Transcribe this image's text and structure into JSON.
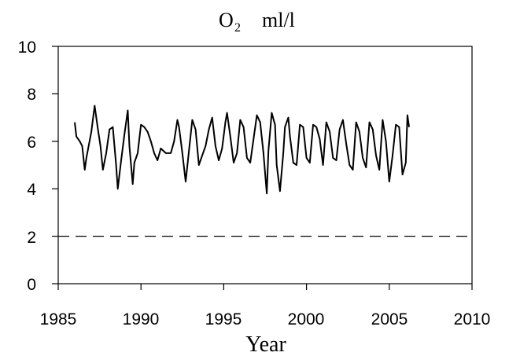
{
  "chart_data": {
    "type": "line",
    "title": {
      "prefix": "O",
      "subscript": "2",
      "unit": "ml/l"
    },
    "xlabel": "Year",
    "ylabel": "",
    "xlim": [
      1985,
      2010
    ],
    "ylim": [
      0,
      10
    ],
    "xticks": [
      "1985",
      "1990",
      "1995",
      "2000",
      "2005",
      "2010"
    ],
    "yticks": [
      "0",
      "2",
      "4",
      "6",
      "8",
      "10"
    ],
    "grid": false,
    "reference_line": {
      "y": 2,
      "style": "dashed"
    },
    "series": [
      {
        "color": "#000000",
        "x": [
          1986.0,
          1986.1,
          1986.3,
          1986.45,
          1986.6,
          1986.7,
          1987.0,
          1987.2,
          1987.4,
          1987.55,
          1987.7,
          1987.9,
          1988.1,
          1988.3,
          1988.5,
          1988.6,
          1988.8,
          1989.0,
          1989.2,
          1989.3,
          1989.5,
          1989.6,
          1989.8,
          1990.0,
          1990.2,
          1990.4,
          1990.6,
          1990.8,
          1991.0,
          1991.2,
          1991.5,
          1991.8,
          1992.0,
          1992.2,
          1992.3,
          1992.5,
          1992.7,
          1992.9,
          1993.1,
          1993.3,
          1993.5,
          1993.7,
          1993.9,
          1994.1,
          1994.3,
          1994.5,
          1994.7,
          1994.9,
          1995.1,
          1995.2,
          1995.4,
          1995.6,
          1995.8,
          1996.0,
          1996.2,
          1996.4,
          1996.6,
          1996.8,
          1997.0,
          1997.2,
          1997.4,
          1997.6,
          1997.7,
          1997.9,
          1998.1,
          1998.2,
          1998.4,
          1998.6,
          1998.7,
          1998.9,
          1999.0,
          1999.2,
          1999.4,
          1999.6,
          1999.8,
          2000.0,
          2000.2,
          2000.4,
          2000.6,
          2000.8,
          2001.0,
          2001.2,
          2001.4,
          2001.6,
          2001.8,
          2002.0,
          2002.2,
          2002.4,
          2002.6,
          2002.8,
          2003.0,
          2003.2,
          2003.4,
          2003.6,
          2003.8,
          2004.0,
          2004.2,
          2004.4,
          2004.6,
          2004.8,
          2005.0,
          2005.2,
          2005.4,
          2005.6,
          2005.8,
          2006.0,
          2006.1,
          2006.2
        ],
        "y": [
          6.8,
          6.2,
          6.0,
          5.8,
          4.8,
          5.3,
          6.4,
          7.5,
          6.5,
          5.8,
          4.8,
          5.5,
          6.5,
          6.6,
          5.0,
          4.0,
          5.2,
          6.3,
          7.3,
          5.8,
          4.2,
          5.1,
          5.5,
          6.7,
          6.6,
          6.4,
          6.0,
          5.5,
          5.2,
          5.7,
          5.5,
          5.5,
          6.0,
          6.9,
          6.6,
          5.5,
          4.3,
          5.6,
          6.9,
          6.5,
          5.0,
          5.4,
          5.8,
          6.5,
          7.0,
          5.8,
          5.2,
          5.7,
          6.8,
          7.2,
          6.2,
          5.1,
          5.5,
          6.9,
          6.6,
          5.3,
          5.1,
          6.1,
          7.1,
          6.8,
          5.5,
          3.8,
          5.6,
          7.2,
          6.7,
          5.0,
          3.9,
          5.5,
          6.6,
          7.0,
          6.2,
          5.1,
          5.0,
          6.7,
          6.6,
          5.3,
          5.1,
          6.7,
          6.6,
          6.1,
          5.0,
          6.8,
          6.4,
          5.3,
          5.2,
          6.5,
          6.9,
          5.9,
          5.0,
          4.8,
          6.8,
          6.4,
          5.3,
          4.9,
          6.8,
          6.5,
          5.4,
          4.8,
          6.9,
          6.0,
          4.3,
          5.4,
          6.7,
          6.6,
          4.6,
          5.1,
          7.1,
          6.6
        ]
      }
    ]
  }
}
